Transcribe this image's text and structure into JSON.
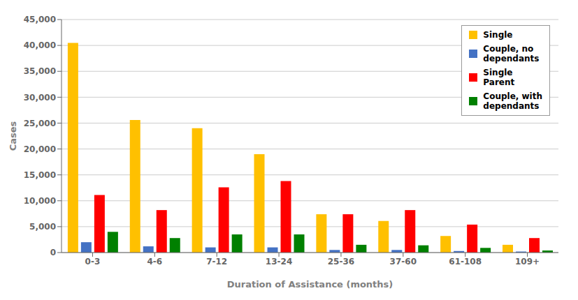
{
  "chart_data": {
    "type": "bar",
    "categories": [
      "0-3",
      "4-6",
      "7-12",
      "13-24",
      "25-36",
      "37-60",
      "61-108",
      "109+"
    ],
    "series": [
      {
        "name": "Single",
        "color": "#FFC000",
        "values": [
          40500,
          25600,
          24000,
          19000,
          7400,
          6100,
          3200,
          1500
        ]
      },
      {
        "name": "Couple, no\ndependants",
        "color": "#4472C4",
        "values": [
          2000,
          1200,
          1000,
          1000,
          500,
          500,
          300,
          200
        ]
      },
      {
        "name": "Single\nParent",
        "color": "#FF0000",
        "values": [
          11100,
          8200,
          12600,
          13800,
          7400,
          8200,
          5400,
          2800
        ]
      },
      {
        "name": "Couple, with\ndependants",
        "color": "#008000",
        "values": [
          4000,
          2800,
          3500,
          3500,
          1500,
          1400,
          900,
          400
        ]
      }
    ],
    "xlabel": "Duration of Assistance (months)",
    "ylabel": "Cases",
    "ylim": [
      0,
      45000
    ],
    "yticks": [
      0,
      {
        "value": 5000,
        "label": "5,000"
      },
      {
        "value": 10000,
        "label": "10,000"
      },
      {
        "value": 15000,
        "label": "15,000"
      },
      {
        "value": 20000,
        "label": "20,000"
      },
      {
        "value": 25000,
        "label": "25,000"
      },
      {
        "value": 30000,
        "label": "30,000"
      },
      {
        "value": 35000,
        "label": "35,000"
      },
      {
        "value": 40000,
        "label": "40,000"
      },
      {
        "value": 45000,
        "label": "45,000"
      }
    ],
    "grid": true,
    "legend": "upper right"
  }
}
